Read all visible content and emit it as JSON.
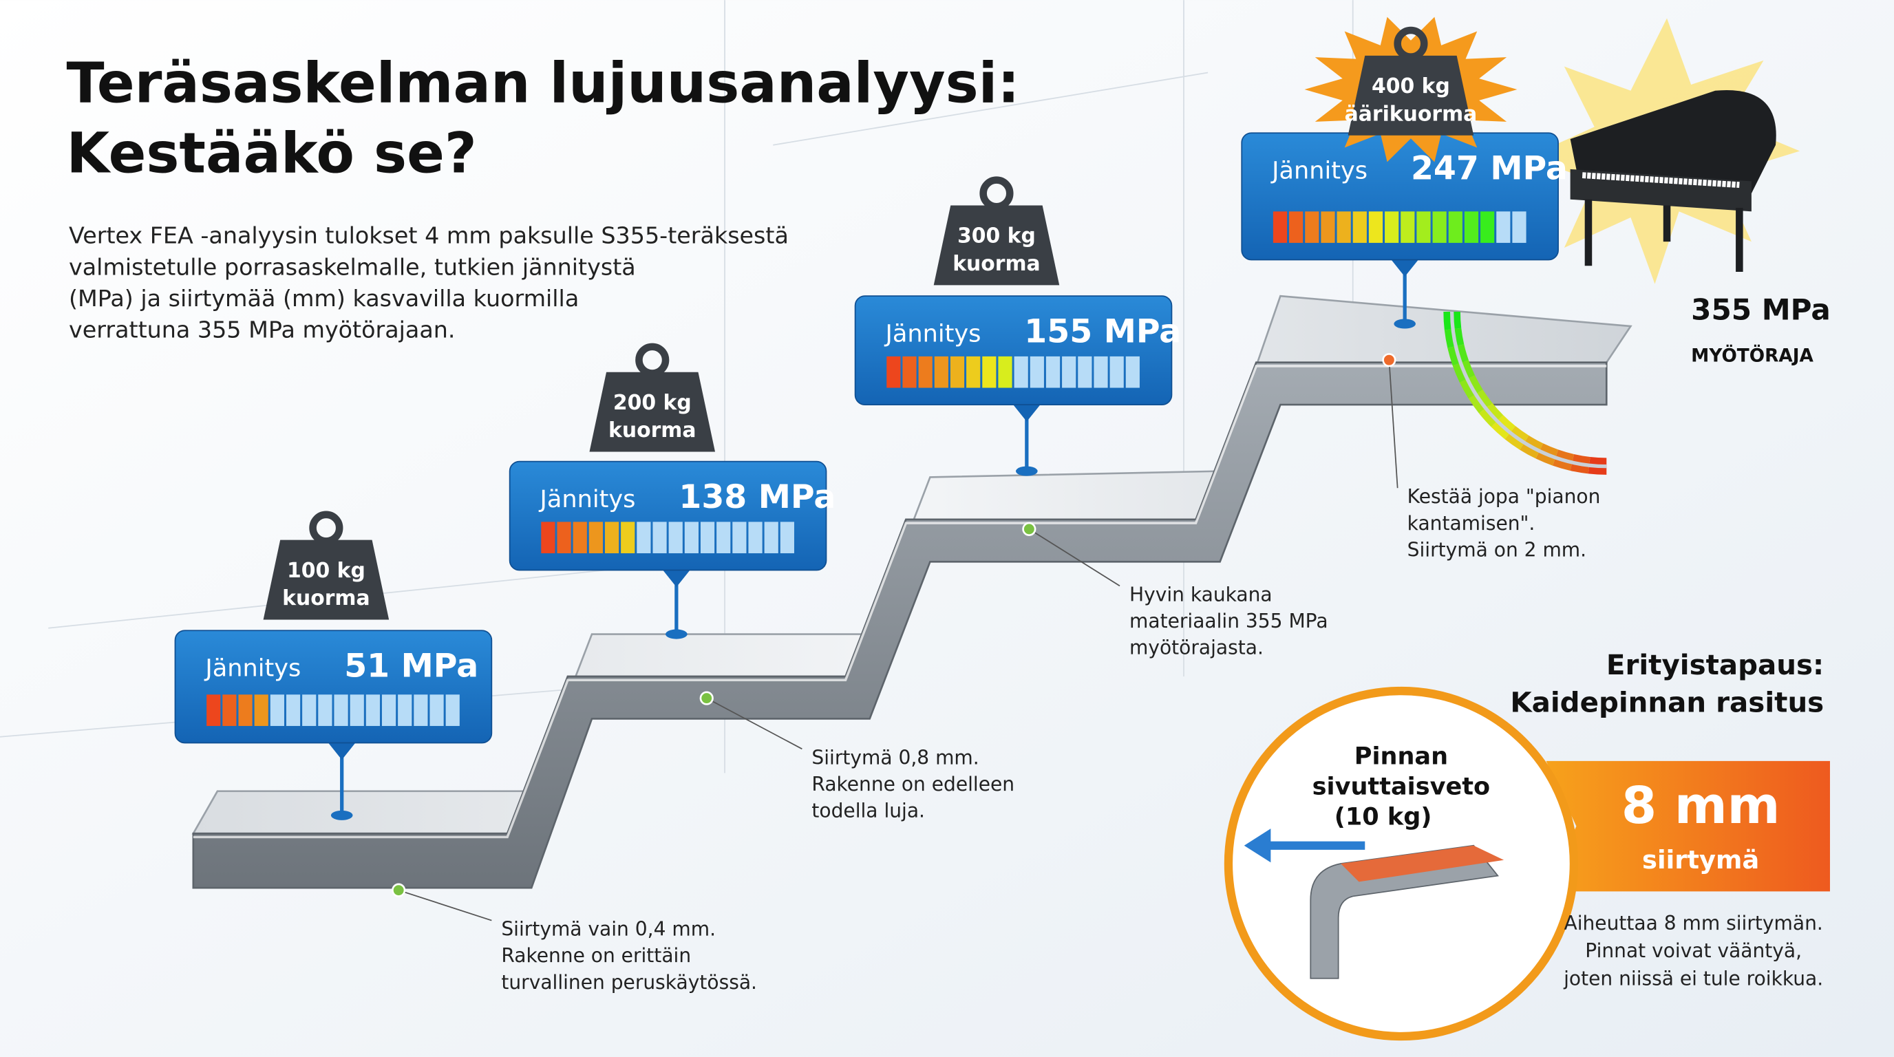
{
  "header": {
    "title": [
      "Teräsaskelman lujuusanalyysi:",
      "Kestääkö se?"
    ],
    "description": [
      "Vertex FEA -analyysin tulokset 4 mm paksulle S355-teräksestä",
      "valmistetulle porrasaskelmalle, tutkien jännitystä",
      "(MPa) ja siirtymää (mm) kasvavilla kuormilla",
      "verrattuna 355 MPa myötörajaan."
    ]
  },
  "steps": [
    {
      "load": [
        "100 kg",
        "kuorma"
      ],
      "stress_label": "Jännitys",
      "stress": "51 MPa",
      "note": [
        "Siirtymä vain 0,4 mm.",
        "Rakenne on erittäin",
        "turvallinen peruskäytössä."
      ]
    },
    {
      "load": [
        "200 kg",
        "kuorma"
      ],
      "stress_label": "Jännitys",
      "stress": "138 MPa",
      "note": [
        "Siirtymä 0,8 mm.",
        "Rakenne on edelleen",
        "todella luja."
      ]
    },
    {
      "load": [
        "300 kg",
        "kuorma"
      ],
      "stress_label": "Jännitys",
      "stress": "155 MPa",
      "note": [
        "Hyvin kaukana",
        "materiaalin 355 MPa",
        "myötörajasta."
      ]
    },
    {
      "load": [
        "400 kg",
        "äärikuorma"
      ],
      "stress_label": "Jännitys",
      "stress": "247 MPa",
      "note": [
        "Kestää jopa \"pianon",
        "kantamisen\".",
        "Siirtymä on 2 mm."
      ]
    }
  ],
  "yield": {
    "value": "355 MPa",
    "label": "MYÖTÖRAJA"
  },
  "special_case": {
    "title": [
      "Erityistapaus:",
      "Kaidepinnan rasitus"
    ],
    "force": [
      "Pinnan",
      "sivuttaisveto",
      "(10 kg)"
    ],
    "displacement": "8 mm",
    "displacement_label": "siirtymä",
    "note": [
      "Aiheuttaa 8 mm siirtymän.",
      "Pinnat voivat vääntyä,",
      "joten niissä ei tule roikkua."
    ]
  }
}
